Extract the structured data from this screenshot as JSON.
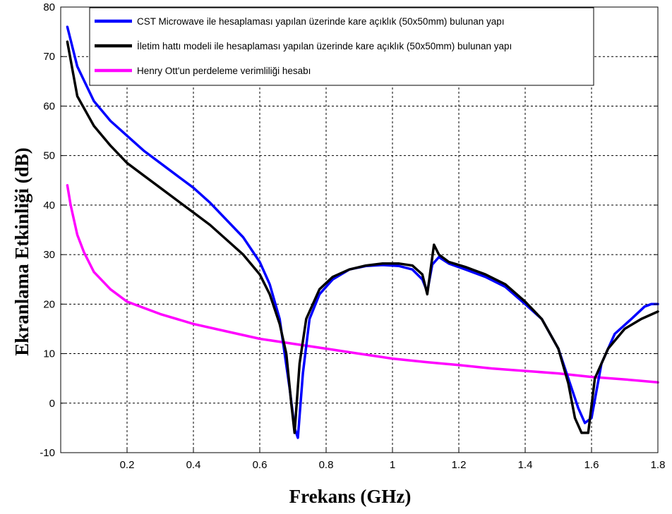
{
  "chart_data": {
    "type": "line",
    "xlabel": "Frekans (GHz)",
    "ylabel": "Ekranlama Etkinliği (dB)",
    "xlim": [
      0,
      1.8
    ],
    "ylim": [
      -10,
      80
    ],
    "xticks": [
      0.2,
      0.4,
      0.6,
      0.8,
      1,
      1.2,
      1.4,
      1.6,
      1.8
    ],
    "yticks": [
      -10,
      0,
      10,
      20,
      30,
      40,
      50,
      60,
      70,
      80
    ],
    "grid": true,
    "legend_position": "top-right",
    "series": [
      {
        "name": "CST Microwave ile hesaplaması yapılan üzerinde kare açıklık (50x50mm) bulunan yapı",
        "color": "#0000ff",
        "x": [
          0.02,
          0.05,
          0.1,
          0.15,
          0.2,
          0.25,
          0.3,
          0.35,
          0.4,
          0.45,
          0.5,
          0.55,
          0.6,
          0.63,
          0.66,
          0.69,
          0.705,
          0.715,
          0.73,
          0.75,
          0.78,
          0.82,
          0.87,
          0.92,
          0.97,
          1.02,
          1.06,
          1.09,
          1.105,
          1.12,
          1.14,
          1.17,
          1.22,
          1.28,
          1.34,
          1.4,
          1.45,
          1.5,
          1.53,
          1.56,
          1.58,
          1.6,
          1.63,
          1.67,
          1.72,
          1.76,
          1.78,
          1.8
        ],
        "y": [
          76,
          68,
          61,
          57,
          54,
          51,
          48.5,
          46,
          43.5,
          40.5,
          37,
          33.5,
          28.5,
          24,
          17,
          3,
          -5,
          -7,
          6,
          17,
          22,
          25,
          27,
          27.7,
          27.9,
          27.7,
          27,
          25,
          22.5,
          28,
          29.5,
          28.2,
          27,
          25.5,
          23.5,
          20,
          17,
          11,
          5,
          -1,
          -4,
          -3,
          8,
          14,
          17,
          19.5,
          20,
          20
        ]
      },
      {
        "name": "İletim hattı modeli ile hesaplaması yapılan üzerinde kare açıklık (50x50mm) bulunan yapı",
        "color": "#000000",
        "x": [
          0.02,
          0.05,
          0.1,
          0.15,
          0.2,
          0.25,
          0.3,
          0.35,
          0.4,
          0.45,
          0.5,
          0.55,
          0.6,
          0.63,
          0.66,
          0.68,
          0.695,
          0.705,
          0.72,
          0.74,
          0.78,
          0.82,
          0.87,
          0.92,
          0.97,
          1.02,
          1.06,
          1.09,
          1.105,
          1.125,
          1.14,
          1.17,
          1.22,
          1.28,
          1.34,
          1.4,
          1.45,
          1.5,
          1.53,
          1.55,
          1.57,
          1.59,
          1.61,
          1.65,
          1.7,
          1.75,
          1.8
        ],
        "y": [
          73,
          62,
          56,
          52,
          48.5,
          46,
          43.5,
          41,
          38.5,
          36,
          33,
          30,
          26,
          22,
          16,
          10,
          0,
          -6,
          8,
          17,
          23,
          25.5,
          27,
          27.8,
          28.2,
          28.2,
          27.8,
          26,
          22,
          32,
          30,
          28.5,
          27.5,
          26,
          24,
          20.5,
          17,
          11,
          4,
          -3,
          -6,
          -6,
          5,
          11,
          15,
          17,
          18.5
        ]
      },
      {
        "name": "Henry Ott'un perdeleme verimliliği hesabı",
        "color": "#ff00ff",
        "x": [
          0.02,
          0.03,
          0.05,
          0.07,
          0.1,
          0.15,
          0.2,
          0.3,
          0.4,
          0.5,
          0.6,
          0.7,
          0.8,
          0.9,
          1.0,
          1.1,
          1.2,
          1.3,
          1.4,
          1.5,
          1.6,
          1.7,
          1.8
        ],
        "y": [
          44,
          40,
          34,
          30.5,
          26.5,
          23,
          20.5,
          18,
          16,
          14.5,
          13,
          12,
          11,
          10,
          9,
          8.3,
          7.7,
          7,
          6.5,
          6,
          5.3,
          4.8,
          4.2
        ]
      }
    ]
  }
}
